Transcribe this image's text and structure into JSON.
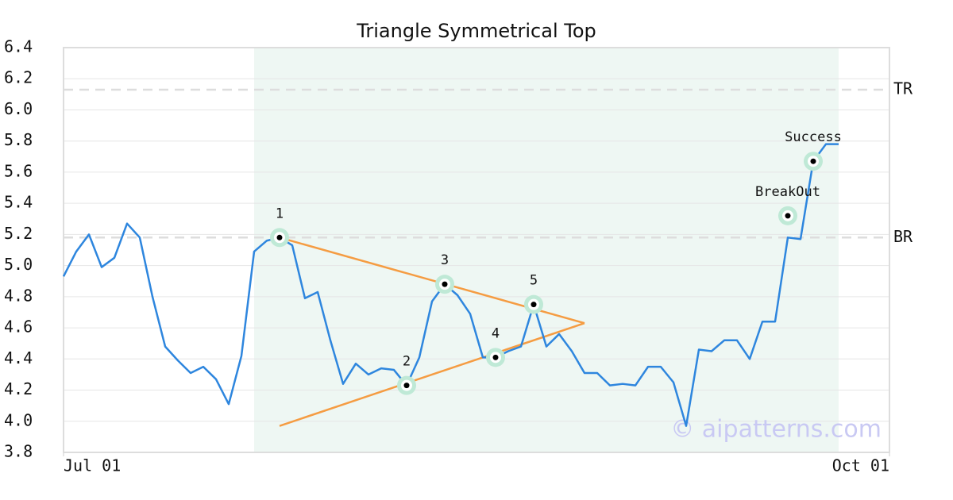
{
  "chart_data": {
    "type": "line",
    "title": "Triangle Symmetrical Top",
    "xlim": [
      0,
      65
    ],
    "xticks": [
      {
        "value": 0,
        "label": "Jul 01"
      },
      {
        "value": 65,
        "label": "Oct 01"
      }
    ],
    "ylim": [
      3.8,
      6.4
    ],
    "yticks": [
      3.8,
      {
        "value": 4.0,
        "label": "4.0"
      },
      4.2,
      4.4,
      4.6,
      4.8,
      {
        "value": 5.0,
        "label": "5.0"
      },
      5.2,
      5.4,
      5.6,
      5.8,
      {
        "value": 6.0,
        "label": "6.0"
      },
      6.2,
      6.4
    ],
    "grid": true,
    "series": [
      {
        "color": "#2e86de",
        "values": [
          4.93,
          5.09,
          5.2,
          4.99,
          5.05,
          5.27,
          5.18,
          4.8,
          4.48,
          4.39,
          4.31,
          4.35,
          4.27,
          4.11,
          4.42,
          5.09,
          5.16,
          5.18,
          5.13,
          4.79,
          4.83,
          4.52,
          4.24,
          4.37,
          4.3,
          4.34,
          4.33,
          4.23,
          4.41,
          4.77,
          4.88,
          4.81,
          4.69,
          4.41,
          4.41,
          4.45,
          4.48,
          4.75,
          4.48,
          4.56,
          4.45,
          4.31,
          4.31,
          4.23,
          4.24,
          4.23,
          4.35,
          4.35,
          4.25,
          3.97,
          4.46,
          4.45,
          4.52,
          4.52,
          4.4,
          4.64,
          4.64,
          5.18,
          5.17,
          5.67,
          5.78,
          5.78
        ]
      }
    ],
    "highlight_range": [
      15,
      61
    ],
    "highlight_color": "#eef7f3",
    "hlines": [
      {
        "label": "TR",
        "value": 6.13
      },
      {
        "label": "BR",
        "value": 5.18
      }
    ],
    "trendline_color": "#f59c42",
    "trendlines": [
      {
        "x": [
          17,
          41
        ],
        "y": [
          5.18,
          4.63
        ]
      },
      {
        "x": [
          17,
          41
        ],
        "y": [
          3.97,
          4.63
        ]
      }
    ],
    "points": [
      {
        "label": "1",
        "x": 17,
        "y": 5.18
      },
      {
        "label": "2",
        "x": 27,
        "y": 4.23
      },
      {
        "label": "3",
        "x": 30,
        "y": 4.88
      },
      {
        "label": "4",
        "x": 34,
        "y": 4.41
      },
      {
        "label": "5",
        "x": 37,
        "y": 4.75
      },
      {
        "label": "BreakOut",
        "x": 57,
        "y": 5.32
      },
      {
        "label": "Success",
        "x": 59,
        "y": 5.67
      }
    ],
    "watermark": "© aipatterns.com"
  }
}
